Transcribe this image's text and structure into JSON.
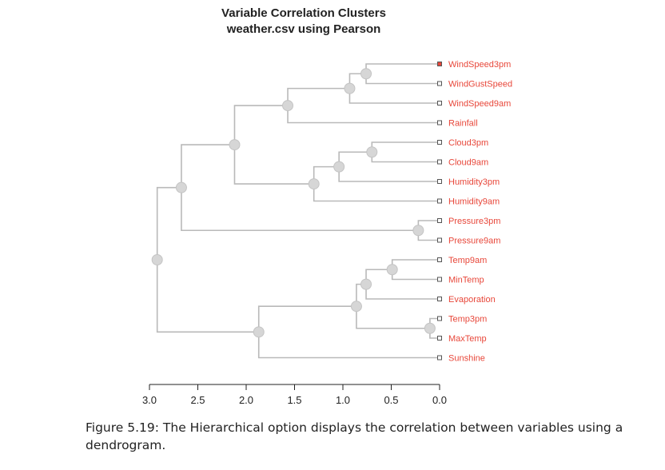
{
  "chart_data": {
    "type": "dendrogram",
    "title": "Variable Correlation Clusters",
    "subtitle": "weather.csv using Pearson",
    "x_ticks": [
      "3.0",
      "2.5",
      "2.0",
      "1.5",
      "1.0",
      "0.5",
      "0.0"
    ],
    "x_tick_values": [
      3.0,
      2.5,
      2.0,
      1.5,
      1.0,
      0.5,
      0.0
    ],
    "xlim": [
      3.0,
      0.0
    ],
    "leaves": [
      "WindSpeed3pm",
      "WindGustSpeed",
      "WindSpeed9am",
      "Rainfall",
      "Cloud3pm",
      "Cloud9am",
      "Humidity3pm",
      "Humidity9am",
      "Pressure3pm",
      "Pressure9am",
      "Temp9am",
      "MinTemp",
      "Evaporation",
      "Temp3pm",
      "MaxTemp",
      "Sunshine"
    ],
    "merges": [
      {
        "a": "WindSpeed3pm",
        "b": "WindGustSpeed",
        "height": 0.76
      },
      {
        "a": "m0",
        "b": "WindSpeed9am",
        "height": 0.93
      },
      {
        "a": "m1",
        "b": "Rainfall",
        "height": 1.57
      },
      {
        "a": "Cloud3pm",
        "b": "Cloud9am",
        "height": 0.7
      },
      {
        "a": "m3",
        "b": "Humidity3pm",
        "height": 1.04
      },
      {
        "a": "m4",
        "b": "Humidity9am",
        "height": 1.3
      },
      {
        "a": "m2",
        "b": "m5",
        "height": 2.12
      },
      {
        "a": "Pressure3pm",
        "b": "Pressure9am",
        "height": 0.22
      },
      {
        "a": "m6",
        "b": "m7",
        "height": 2.67
      },
      {
        "a": "Temp9am",
        "b": "MinTemp",
        "height": 0.49
      },
      {
        "a": "m9",
        "b": "Evaporation",
        "height": 0.76
      },
      {
        "a": "Temp3pm",
        "b": "MaxTemp",
        "height": 0.1
      },
      {
        "a": "m10",
        "b": "m11",
        "height": 0.86
      },
      {
        "a": "m12",
        "b": "Sunshine",
        "height": 1.87
      },
      {
        "a": "m8",
        "b": "m13",
        "height": 2.92
      }
    ],
    "leaf_color": "#e8473a",
    "first_leaf_marker_color": "#e8473a",
    "branch_color": "#b9b9b9",
    "node_color": "#d6d6d6"
  },
  "caption": "Figure 5.19: The Hierarchical option displays the correlation between variables using a dendrogram."
}
